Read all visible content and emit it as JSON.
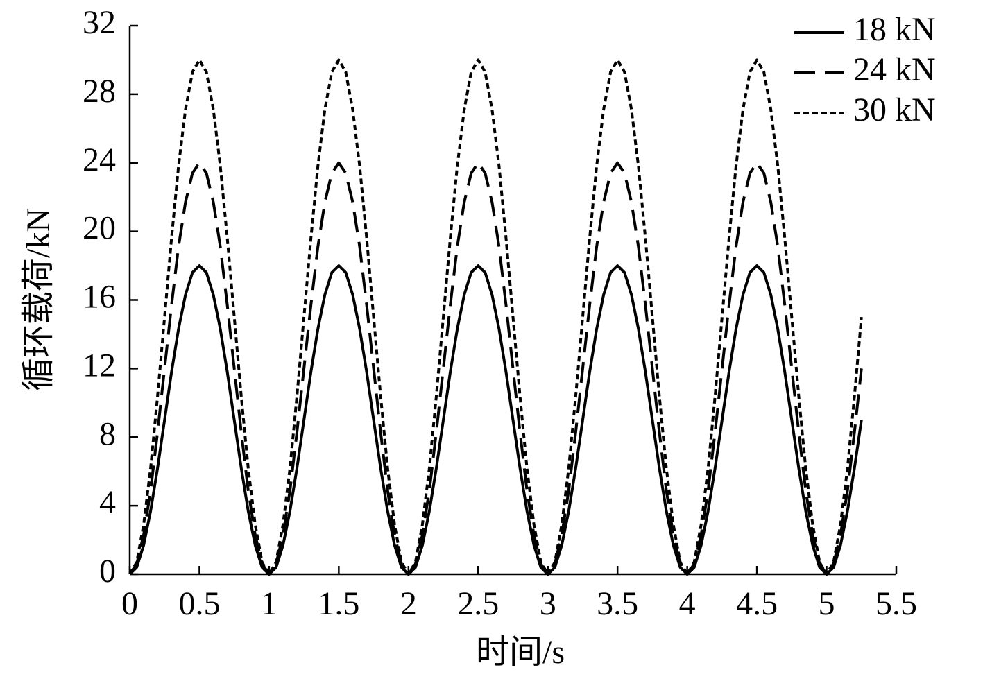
{
  "chart_data": {
    "type": "line",
    "x_label": "时间/s",
    "y_label": "循环载荷/kN",
    "x": [
      0,
      0.05,
      0.1,
      0.15,
      0.2,
      0.25,
      0.3,
      0.35,
      0.4,
      0.45,
      0.5,
      0.55,
      0.6,
      0.65,
      0.7,
      0.75,
      0.8,
      0.85,
      0.9,
      0.95,
      1,
      1.05,
      1.1,
      1.15,
      1.2,
      1.25,
      1.3,
      1.35,
      1.4,
      1.45,
      1.5,
      1.55,
      1.6,
      1.65,
      1.7,
      1.75,
      1.8,
      1.85,
      1.9,
      1.95,
      2,
      2.05,
      2.1,
      2.15,
      2.2,
      2.25,
      2.3,
      2.35,
      2.4,
      2.45,
      2.5,
      2.55,
      2.6,
      2.65,
      2.7,
      2.75,
      2.8,
      2.85,
      2.9,
      2.95,
      3,
      3.05,
      3.1,
      3.15,
      3.2,
      3.25,
      3.3,
      3.35,
      3.4,
      3.45,
      3.5,
      3.55,
      3.6,
      3.65,
      3.7,
      3.75,
      3.8,
      3.85,
      3.9,
      3.95,
      4,
      4.05,
      4.1,
      4.15,
      4.2,
      4.25,
      4.3,
      4.35,
      4.4,
      4.45,
      4.5,
      4.55,
      4.6,
      4.65,
      4.7,
      4.75,
      4.8,
      4.85,
      4.9,
      4.95,
      5,
      5.05,
      5.1,
      5.15,
      5.2,
      5.25
    ],
    "series": [
      {
        "name": "18 kN",
        "color": "#000000",
        "style": "solid",
        "values": [
          0,
          0.4,
          1.7,
          3.7,
          6.2,
          9,
          11.8,
          14.3,
          16.3,
          17.6,
          18,
          17.6,
          16.3,
          14.3,
          11.8,
          9,
          6.2,
          3.7,
          1.7,
          0.4,
          0,
          0.4,
          1.7,
          3.7,
          6.2,
          9,
          11.8,
          14.3,
          16.3,
          17.6,
          18,
          17.6,
          16.3,
          14.3,
          11.8,
          9,
          6.2,
          3.7,
          1.7,
          0.4,
          0,
          0.4,
          1.7,
          3.7,
          6.2,
          9,
          11.8,
          14.3,
          16.3,
          17.6,
          18,
          17.6,
          16.3,
          14.3,
          11.8,
          9,
          6.2,
          3.7,
          1.7,
          0.4,
          0,
          0.4,
          1.7,
          3.7,
          6.2,
          9,
          11.8,
          14.3,
          16.3,
          17.6,
          18,
          17.6,
          16.3,
          14.3,
          11.8,
          9,
          6.2,
          3.7,
          1.7,
          0.4,
          0,
          0.4,
          1.7,
          3.7,
          6.2,
          9,
          11.8,
          14.3,
          16.3,
          17.6,
          18,
          17.6,
          16.3,
          14.3,
          11.8,
          9,
          6.2,
          3.7,
          1.7,
          0.4,
          0,
          0.4,
          1.7,
          3.7,
          6.2,
          9
        ]
      },
      {
        "name": "24 kN",
        "color": "#000000",
        "style": "dashed",
        "values": [
          0,
          0.6,
          2.3,
          4.9,
          8.3,
          12,
          15.7,
          19.1,
          21.7,
          23.4,
          24,
          23.4,
          21.7,
          19.1,
          15.7,
          12,
          8.3,
          4.9,
          2.3,
          0.6,
          0,
          0.6,
          2.3,
          4.9,
          8.3,
          12,
          15.7,
          19.1,
          21.7,
          23.4,
          24,
          23.4,
          21.7,
          19.1,
          15.7,
          12,
          8.3,
          4.9,
          2.3,
          0.6,
          0,
          0.6,
          2.3,
          4.9,
          8.3,
          12,
          15.7,
          19.1,
          21.7,
          23.4,
          24,
          23.4,
          21.7,
          19.1,
          15.7,
          12,
          8.3,
          4.9,
          2.3,
          0.6,
          0,
          0.6,
          2.3,
          4.9,
          8.3,
          12,
          15.7,
          19.1,
          21.7,
          23.4,
          24,
          23.4,
          21.7,
          19.1,
          15.7,
          12,
          8.3,
          4.9,
          2.3,
          0.6,
          0,
          0.6,
          2.3,
          4.9,
          8.3,
          12,
          15.7,
          19.1,
          21.7,
          23.4,
          24,
          23.4,
          21.7,
          19.1,
          15.7,
          12,
          8.3,
          4.9,
          2.3,
          0.6,
          0,
          0.6,
          2.3,
          4.9,
          8.3,
          12
        ]
      },
      {
        "name": "30 kN",
        "color": "#000000",
        "style": "dotted",
        "values": [
          0,
          0.7,
          2.9,
          6.2,
          10.4,
          15,
          19.6,
          23.8,
          27.1,
          29.3,
          30,
          29.3,
          27.1,
          23.8,
          19.6,
          15,
          10.4,
          6.2,
          2.9,
          0.7,
          0,
          0.7,
          2.9,
          6.2,
          10.4,
          15,
          19.6,
          23.8,
          27.1,
          29.3,
          30,
          29.3,
          27.1,
          23.8,
          19.6,
          15,
          10.4,
          6.2,
          2.9,
          0.7,
          0,
          0.7,
          2.9,
          6.2,
          10.4,
          15,
          19.6,
          23.8,
          27.1,
          29.3,
          30,
          29.3,
          27.1,
          23.8,
          19.6,
          15,
          10.4,
          6.2,
          2.9,
          0.7,
          0,
          0.7,
          2.9,
          6.2,
          10.4,
          15,
          19.6,
          23.8,
          27.1,
          29.3,
          30,
          29.3,
          27.1,
          23.8,
          19.6,
          15,
          10.4,
          6.2,
          2.9,
          0.7,
          0,
          0.7,
          2.9,
          6.2,
          10.4,
          15,
          19.6,
          23.8,
          27.1,
          29.3,
          30,
          29.3,
          27.1,
          23.8,
          19.6,
          15,
          10.4,
          6.2,
          2.9,
          0.7,
          0,
          0.7,
          2.9,
          6.2,
          10.4,
          15
        ]
      }
    ],
    "xlim": [
      0,
      5.5
    ],
    "xticks": [
      0,
      0.5,
      1,
      1.5,
      2,
      2.5,
      3,
      3.5,
      4,
      4.5,
      5,
      5.5
    ],
    "ylim": [
      0,
      32
    ],
    "yticks": [
      0,
      4,
      8,
      12,
      16,
      20,
      24,
      28,
      32
    ],
    "grid": false,
    "legend": "upper right"
  }
}
